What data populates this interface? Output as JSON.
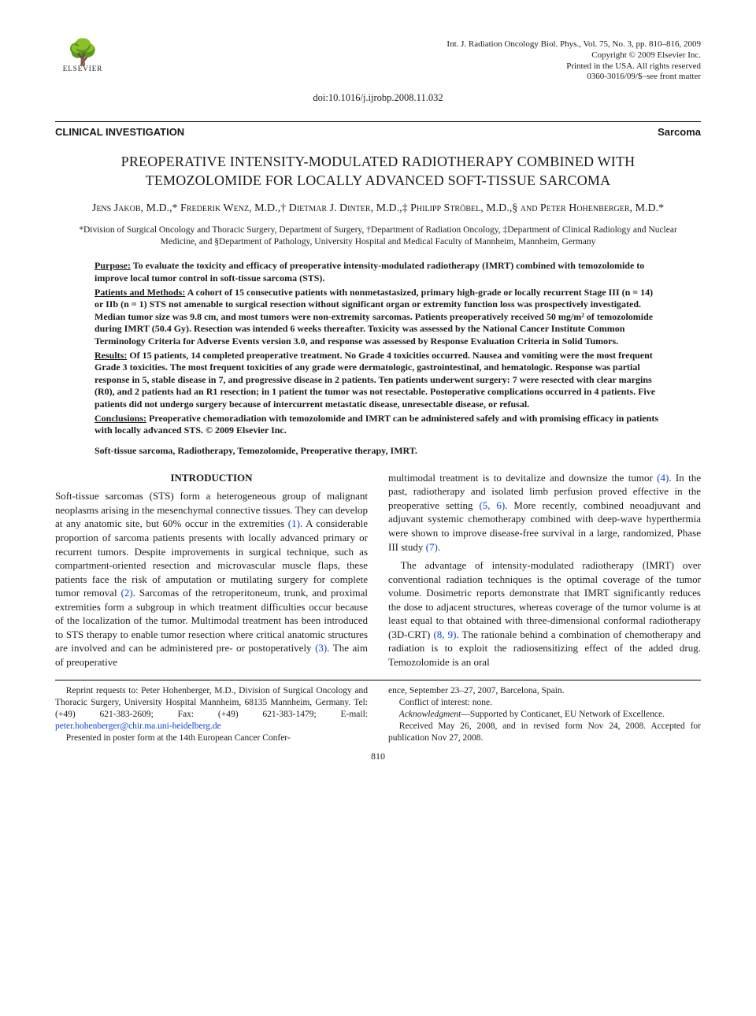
{
  "publisher": {
    "logo_glyph": "🌳",
    "logo_name": "ELSEVIER"
  },
  "pubinfo": {
    "line1": "Int. J. Radiation Oncology Biol. Phys., Vol. 75, No. 3, pp. 810–816, 2009",
    "line2": "Copyright © 2009 Elsevier Inc.",
    "line3": "Printed in the USA. All rights reserved",
    "line4": "0360-3016/09/$–see front matter"
  },
  "doi": "doi:10.1016/j.ijrobp.2008.11.032",
  "section_bar": {
    "left": "CLINICAL INVESTIGATION",
    "right": "Sarcoma"
  },
  "title": "PREOPERATIVE INTENSITY-MODULATED RADIOTHERAPY COMBINED WITH TEMOZOLOMIDE FOR LOCALLY ADVANCED SOFT-TISSUE SARCOMA",
  "authors": "Jens Jakob, M.D.,* Frederik Wenz, M.D.,† Dietmar J. Dinter, M.D.,‡ Philipp Ströbel, M.D.,§ and Peter Hohenberger, M.D.*",
  "affiliations": "*Division of Surgical Oncology and Thoracic Surgery, Department of Surgery, †Department of Radiation Oncology, ‡Department of Clinical Radiology and Nuclear Medicine, and §Department of Pathology, University Hospital and Medical Faculty of Mannheim, Mannheim, Germany",
  "abstract": {
    "purpose": {
      "label": "Purpose:",
      "text": " To evaluate the toxicity and efficacy of preoperative intensity-modulated radiotherapy (IMRT) combined with temozolomide to improve local tumor control in soft-tissue sarcoma (STS)."
    },
    "methods": {
      "label": "Patients and Methods:",
      "text": " A cohort of 15 consecutive patients with nonmetastasized, primary high-grade or locally recurrent Stage III (n = 14) or IIb (n = 1) STS not amenable to surgical resection without significant organ or extremity function loss was prospectively investigated. Median tumor size was 9.8 cm, and most tumors were non-extremity sarcomas. Patients preoperatively received 50 mg/m² of temozolomide during IMRT (50.4 Gy). Resection was intended 6 weeks thereafter. Toxicity was assessed by the National Cancer Institute Common Terminology Criteria for Adverse Events version 3.0, and response was assessed by Response Evaluation Criteria in Solid Tumors."
    },
    "results": {
      "label": "Results:",
      "text": " Of 15 patients, 14 completed preoperative treatment. No Grade 4 toxicities occurred. Nausea and vomiting were the most frequent Grade 3 toxicities. The most frequent toxicities of any grade were dermatologic, gastrointestinal, and hematologic. Response was partial response in 5, stable disease in 7, and progressive disease in 2 patients. Ten patients underwent surgery: 7 were resected with clear margins (R0), and 2 patients had an R1 resection; in 1 patient the tumor was not resectable. Postoperative complications occurred in 4 patients. Five patients did not undergo surgery because of intercurrent metastatic disease, unresectable disease, or refusal."
    },
    "conclusions": {
      "label": "Conclusions:",
      "text": " Preoperative chemoradiation with temozolomide and IMRT can be administered safely and with promising efficacy in patients with locally advanced STS.   © 2009 Elsevier Inc."
    }
  },
  "keywords": "Soft-tissue sarcoma, Radiotherapy, Temozolomide, Preoperative therapy, IMRT.",
  "intro_heading": "INTRODUCTION",
  "body": {
    "col1_p1a": "Soft-tissue sarcomas (STS) form a heterogeneous group of malignant neoplasms arising in the mesenchymal connective tissues. They can develop at any anatomic site, but 60% occur in the extremities ",
    "ref1": "(1)",
    "col1_p1b": ". A considerable proportion of sarcoma patients presents with locally advanced primary or recurrent tumors. Despite improvements in surgical technique, such as compartment-oriented resection and microvascular muscle flaps, these patients face the risk of amputation or mutilating surgery for complete tumor removal ",
    "ref2": "(2)",
    "col1_p1c": ". Sarcomas of the retroperitoneum, trunk, and proximal extremities form a subgroup in which treatment difficulties occur because of the localization of the tumor. Multimodal treatment has been introduced to STS therapy to enable tumor resection where critical anatomic structures are involved and can be administered pre- or postoperatively ",
    "ref3": "(3)",
    "col1_p1d": ". The aim of preoperative",
    "col2_p1a": "multimodal treatment is to devitalize and downsize the tumor ",
    "ref4": "(4)",
    "col2_p1b": ". In the past, radiotherapy and isolated limb perfusion proved effective in the preoperative setting ",
    "ref56": "(5, 6)",
    "col2_p1c": ". More recently, combined neoadjuvant and adjuvant systemic chemotherapy combined with deep-wave hyperthermia were shown to improve disease-free survival in a large, randomized, Phase III study ",
    "ref7": "(7)",
    "col2_p1d": ".",
    "col2_p2a": "The advantage of intensity-modulated radiotherapy (IMRT) over conventional radiation techniques is the optimal coverage of the tumor volume. Dosimetric reports demonstrate that IMRT significantly reduces the dose to adjacent structures, whereas coverage of the tumor volume is at least equal to that obtained with three-dimensional conformal radiotherapy (3D-CRT) ",
    "ref89": "(8, 9)",
    "col2_p2b": ". The rationale behind a combination of chemotherapy and radiation is to exploit the radiosensitizing effect of the added drug. Temozolomide is an oral"
  },
  "footnotes": {
    "left_a": "Reprint requests to: Peter Hohenberger, M.D., Division of Surgical Oncology and Thoracic Surgery, University Hospital Mannheim, 68135 Mannheim, Germany. Tel: (+49) 621-383-2609; Fax: (+49) 621-383-1479; E-mail: ",
    "email": "peter.hohenberger@chir.ma.uni-heidelberg.de",
    "left_b": "Presented in poster form at the 14th European Cancer Confer-",
    "right_a": "ence, September 23–27, 2007, Barcelona, Spain.",
    "right_b": "Conflict of interest: none.",
    "right_c_label": "Acknowledgment",
    "right_c_text": "—Supported by Conticanet, EU Network of Excellence.",
    "right_d": "Received May 26, 2008, and in revised form Nov 24, 2008. Accepted for publication Nov 27, 2008."
  },
  "page_number": "810",
  "colors": {
    "text": "#1a1a1a",
    "link": "#1343c9",
    "background": "#ffffff"
  }
}
